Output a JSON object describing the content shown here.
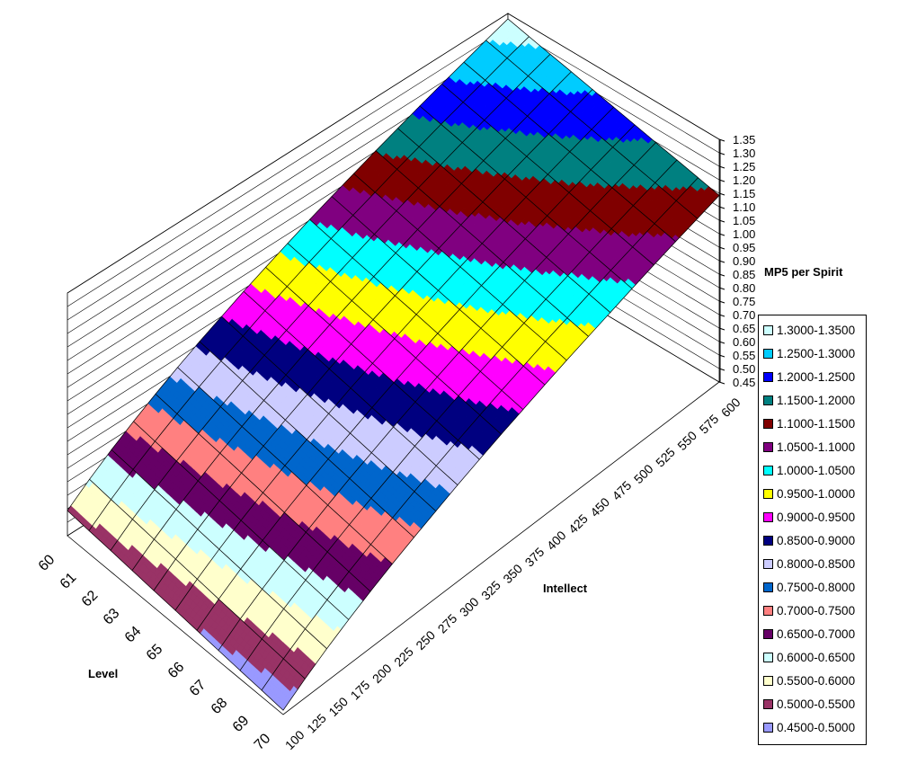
{
  "chart_data": {
    "type": "surface",
    "title": "",
    "xlabel": "Level",
    "ylabel": "Intellect",
    "zlabel": "MP5 per Spirit",
    "levels": [
      60,
      61,
      62,
      63,
      64,
      65,
      66,
      67,
      68,
      69,
      70
    ],
    "intellect": [
      100,
      125,
      150,
      175,
      200,
      225,
      250,
      275,
      300,
      325,
      350,
      375,
      400,
      425,
      450,
      475,
      500,
      525,
      550,
      575,
      600
    ],
    "z_ticks": [
      "0.45",
      "0.50",
      "0.55",
      "0.60",
      "0.65",
      "0.70",
      "0.75",
      "0.80",
      "0.85",
      "0.90",
      "0.95",
      "1.00",
      "1.05",
      "1.10",
      "1.15",
      "1.20",
      "1.25",
      "1.30",
      "1.35"
    ],
    "zlim": [
      0.45,
      1.35
    ],
    "values": [
      [
        0.543,
        0.607,
        0.665,
        0.718,
        0.768,
        0.815,
        0.859,
        0.9,
        0.941,
        0.979,
        1.016,
        1.052,
        1.086,
        1.119,
        1.152,
        1.183,
        1.214,
        1.244,
        1.273,
        1.302,
        1.33
      ],
      [
        0.535,
        0.598,
        0.656,
        0.708,
        0.757,
        0.804,
        0.847,
        0.887,
        0.928,
        0.965,
        1.002,
        1.037,
        1.071,
        1.103,
        1.136,
        1.166,
        1.197,
        1.226,
        1.255,
        1.284,
        1.311
      ],
      [
        0.528,
        0.59,
        0.646,
        0.698,
        0.746,
        0.792,
        0.835,
        0.875,
        0.914,
        0.951,
        0.987,
        1.022,
        1.055,
        1.088,
        1.119,
        1.15,
        1.18,
        1.209,
        1.237,
        1.265,
        1.292
      ],
      [
        0.52,
        0.581,
        0.637,
        0.688,
        0.736,
        0.78,
        0.822,
        0.862,
        0.901,
        0.938,
        0.973,
        1.007,
        1.04,
        1.072,
        1.103,
        1.133,
        1.163,
        1.191,
        1.219,
        1.247,
        1.274
      ],
      [
        0.512,
        0.573,
        0.627,
        0.678,
        0.725,
        0.769,
        0.81,
        0.849,
        0.888,
        0.924,
        0.959,
        0.992,
        1.025,
        1.056,
        1.087,
        1.116,
        1.146,
        1.174,
        1.201,
        1.228,
        1.255
      ],
      [
        0.505,
        0.564,
        0.618,
        0.668,
        0.714,
        0.758,
        0.798,
        0.837,
        0.875,
        0.91,
        0.945,
        0.978,
        1.01,
        1.041,
        1.071,
        1.1,
        1.129,
        1.157,
        1.184,
        1.21,
        1.236
      ],
      [
        0.497,
        0.555,
        0.609,
        0.657,
        0.703,
        0.746,
        0.786,
        0.824,
        0.861,
        0.896,
        0.93,
        0.963,
        0.994,
        1.025,
        1.054,
        1.083,
        1.111,
        1.139,
        1.166,
        1.192,
        1.217
      ],
      [
        0.489,
        0.547,
        0.599,
        0.647,
        0.692,
        0.734,
        0.774,
        0.811,
        0.848,
        0.882,
        0.916,
        0.948,
        0.979,
        1.009,
        1.038,
        1.066,
        1.094,
        1.121,
        1.148,
        1.173,
        1.198
      ],
      [
        0.481,
        0.538,
        0.59,
        0.637,
        0.682,
        0.723,
        0.761,
        0.798,
        0.835,
        0.869,
        0.902,
        0.933,
        0.964,
        0.993,
        1.022,
        1.049,
        1.077,
        1.104,
        1.13,
        1.155,
        1.18
      ],
      [
        0.474,
        0.53,
        0.58,
        0.627,
        0.671,
        0.711,
        0.749,
        0.786,
        0.821,
        0.855,
        0.887,
        0.918,
        0.948,
        0.978,
        1.005,
        1.033,
        1.06,
        1.086,
        1.112,
        1.136,
        1.161
      ],
      [
        0.466,
        0.521,
        0.571,
        0.617,
        0.66,
        0.7,
        0.737,
        0.773,
        0.808,
        0.841,
        0.873,
        0.903,
        0.933,
        0.962,
        0.989,
        1.016,
        1.043,
        1.069,
        1.094,
        1.118,
        1.142
      ]
    ],
    "legend_position": "right",
    "bands": [
      {
        "label": "1.3000-1.3500",
        "min": 1.3,
        "color": "#ccffff"
      },
      {
        "label": "1.2500-1.3000",
        "min": 1.25,
        "color": "#00ccff"
      },
      {
        "label": "1.2000-1.2500",
        "min": 1.2,
        "color": "#0000ff"
      },
      {
        "label": "1.1500-1.2000",
        "min": 1.15,
        "color": "#008080"
      },
      {
        "label": "1.1000-1.1500",
        "min": 1.1,
        "color": "#800000"
      },
      {
        "label": "1.0500-1.1000",
        "min": 1.05,
        "color": "#800080"
      },
      {
        "label": "1.0000-1.0500",
        "min": 1.0,
        "color": "#00ffff"
      },
      {
        "label": "0.9500-1.0000",
        "min": 0.95,
        "color": "#ffff00"
      },
      {
        "label": "0.9000-0.9500",
        "min": 0.9,
        "color": "#ff00ff"
      },
      {
        "label": "0.8500-0.9000",
        "min": 0.85,
        "color": "#000080"
      },
      {
        "label": "0.8000-0.8500",
        "min": 0.8,
        "color": "#ccccff"
      },
      {
        "label": "0.7500-0.8000",
        "min": 0.75,
        "color": "#0066cc"
      },
      {
        "label": "0.7000-0.7500",
        "min": 0.7,
        "color": "#ff8080"
      },
      {
        "label": "0.6500-0.7000",
        "min": 0.65,
        "color": "#660066"
      },
      {
        "label": "0.6000-0.6500",
        "min": 0.6,
        "color": "#ccffff"
      },
      {
        "label": "0.5500-0.6000",
        "min": 0.55,
        "color": "#ffffcc"
      },
      {
        "label": "0.5000-0.5500",
        "min": 0.5,
        "color": "#993366"
      },
      {
        "label": "0.4500-0.5000",
        "min": 0.45,
        "color": "#9999ff"
      }
    ]
  }
}
